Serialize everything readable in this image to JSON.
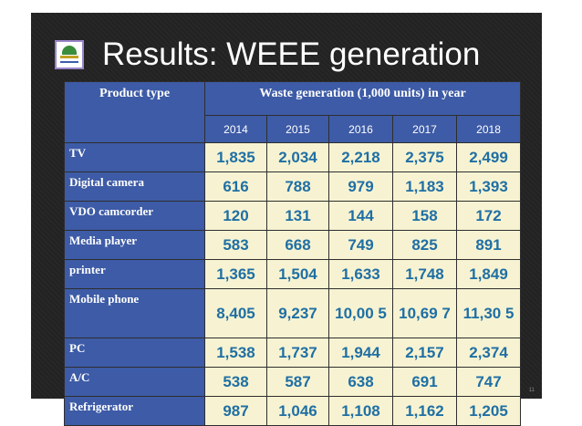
{
  "slide": {
    "title": "Results: WEEE generation",
    "page_number": "11"
  },
  "table": {
    "header_product": "Product type",
    "header_waste": "Waste generation (1,000 units) in year",
    "years": [
      "2014",
      "2015",
      "2016",
      "2017",
      "2018"
    ],
    "rows": [
      {
        "product": "TV",
        "values": [
          "1,835",
          "2,034",
          "2,218",
          "2,375",
          "2,499"
        ]
      },
      {
        "product": "Digital camera",
        "values": [
          "616",
          "788",
          "979",
          "1,183",
          "1,393"
        ]
      },
      {
        "product": "VDO camcorder",
        "values": [
          "120",
          "131",
          "144",
          "158",
          "172"
        ]
      },
      {
        "product": "Media player",
        "values": [
          "583",
          "668",
          "749",
          "825",
          "891"
        ]
      },
      {
        "product": "printer",
        "values": [
          "1,365",
          "1,504",
          "1,633",
          "1,748",
          "1,849"
        ]
      },
      {
        "product": "Mobile phone",
        "values": [
          "8,405",
          "9,237",
          "10,00 5",
          "10,69 7",
          "11,30 5"
        ]
      },
      {
        "product": "PC",
        "values": [
          "1,538",
          "1,737",
          "1,944",
          "2,157",
          "2,374"
        ]
      },
      {
        "product": "A/C",
        "values": [
          "538",
          "587",
          "638",
          "691",
          "747"
        ]
      },
      {
        "product": "Refrigerator",
        "values": [
          "987",
          "1,046",
          "1,108",
          "1,162",
          "1,205"
        ]
      }
    ]
  },
  "colors": {
    "slide_background": "#222222",
    "header_fill": "#3d5ba6",
    "cell_fill": "#f7f3d2",
    "value_text": "#1f6fa4"
  },
  "icons": {
    "logo": "institution-logo-icon"
  }
}
